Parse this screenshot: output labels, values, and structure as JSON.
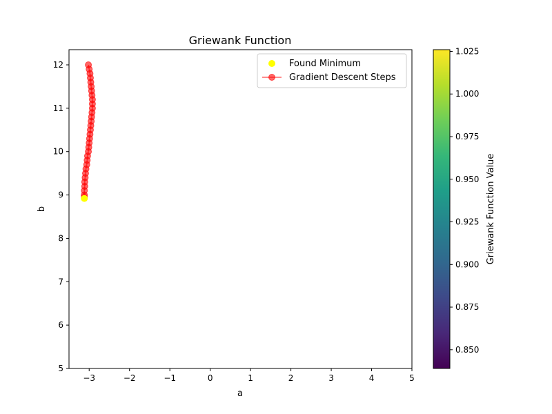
{
  "chart_data": {
    "type": "scatter",
    "title": "Griewank Function",
    "xlabel": "a",
    "ylabel": "b",
    "xlim": [
      -3.5,
      5
    ],
    "ylim": [
      5,
      12.35
    ],
    "x_ticks": [
      -3,
      -2,
      -1,
      0,
      1,
      2,
      3,
      4,
      5
    ],
    "x_tick_labels": [
      "−3",
      "−2",
      "−1",
      "0",
      "1",
      "2",
      "3",
      "4",
      "5"
    ],
    "y_ticks": [
      5,
      6,
      7,
      8,
      9,
      10,
      11,
      12
    ],
    "y_tick_labels": [
      "5",
      "6",
      "7",
      "8",
      "9",
      "10",
      "11",
      "12"
    ],
    "grid": false,
    "legend_position": "top-right",
    "legend": [
      {
        "label": "Found Minimum",
        "marker": "dot",
        "color": "#ffff00"
      },
      {
        "label": "Gradient Descent Steps",
        "marker": "line-dot",
        "color": "#ff0000"
      }
    ],
    "series": [
      {
        "name": "Gradient Descent Steps",
        "color": "#ff0000",
        "alpha": 0.6,
        "points": [
          [
            -3.02,
            12.0
          ],
          [
            -3.0,
            11.9
          ],
          [
            -2.98,
            11.8
          ],
          [
            -2.97,
            11.7
          ],
          [
            -2.96,
            11.6
          ],
          [
            -2.95,
            11.5
          ],
          [
            -2.94,
            11.4
          ],
          [
            -2.93,
            11.3
          ],
          [
            -2.92,
            11.2
          ],
          [
            -2.92,
            11.1
          ],
          [
            -2.92,
            11.0
          ],
          [
            -2.93,
            10.9
          ],
          [
            -2.94,
            10.8
          ],
          [
            -2.95,
            10.7
          ],
          [
            -2.96,
            10.6
          ],
          [
            -2.97,
            10.5
          ],
          [
            -2.98,
            10.4
          ],
          [
            -2.99,
            10.3
          ],
          [
            -3.0,
            10.2
          ],
          [
            -3.01,
            10.1
          ],
          [
            -3.02,
            10.0
          ],
          [
            -3.04,
            9.9
          ],
          [
            -3.05,
            9.8
          ],
          [
            -3.06,
            9.7
          ],
          [
            -3.08,
            9.6
          ],
          [
            -3.09,
            9.5
          ],
          [
            -3.1,
            9.4
          ],
          [
            -3.11,
            9.3
          ],
          [
            -3.11,
            9.2
          ],
          [
            -3.12,
            9.1
          ],
          [
            -3.12,
            9.0
          ],
          [
            -3.12,
            8.95
          ]
        ]
      },
      {
        "name": "Found Minimum",
        "color": "#ffff00",
        "points": [
          [
            -3.12,
            8.92
          ]
        ]
      }
    ],
    "colorbar": {
      "label": "Griewank Function Value",
      "range": [
        0.839,
        1.026
      ],
      "ticks": [
        0.85,
        0.875,
        0.9,
        0.925,
        0.95,
        0.975,
        1.0,
        1.025
      ],
      "tick_labels": [
        "0.850",
        "0.875",
        "0.900",
        "0.925",
        "0.950",
        "0.975",
        "1.000",
        "1.025"
      ],
      "colormap": "viridis",
      "colormap_stops": [
        "#440154",
        "#482878",
        "#3e4989",
        "#31688e",
        "#26828e",
        "#1f9e89",
        "#35b779",
        "#6ece58",
        "#b5de2b",
        "#fde725"
      ]
    }
  }
}
